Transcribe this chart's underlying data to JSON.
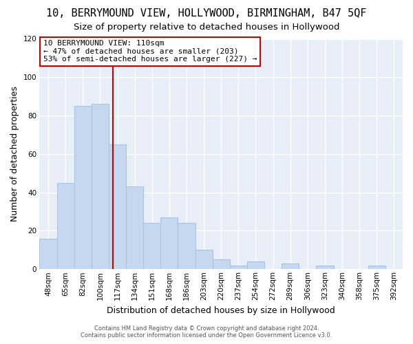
{
  "title": "10, BERRYMOUND VIEW, HOLLYWOOD, BIRMINGHAM, B47 5QF",
  "subtitle": "Size of property relative to detached houses in Hollywood",
  "xlabel": "Distribution of detached houses by size in Hollywood",
  "ylabel": "Number of detached properties",
  "bar_labels": [
    "48sqm",
    "65sqm",
    "82sqm",
    "100sqm",
    "117sqm",
    "134sqm",
    "151sqm",
    "168sqm",
    "186sqm",
    "203sqm",
    "220sqm",
    "237sqm",
    "254sqm",
    "272sqm",
    "289sqm",
    "306sqm",
    "323sqm",
    "340sqm",
    "358sqm",
    "375sqm",
    "392sqm"
  ],
  "bar_values": [
    16,
    45,
    85,
    86,
    65,
    43,
    24,
    27,
    24,
    10,
    5,
    2,
    4,
    0,
    3,
    0,
    2,
    0,
    0,
    2,
    0
  ],
  "bar_color": "#c5d8f0",
  "bar_edge_color": "#a8c4e0",
  "vline_color": "#cc0000",
  "vline_x": 3.75,
  "ylim": [
    0,
    120
  ],
  "yticks": [
    0,
    20,
    40,
    60,
    80,
    100,
    120
  ],
  "annotation_title": "10 BERRYMOUND VIEW: 110sqm",
  "annotation_line1": "← 47% of detached houses are smaller (203)",
  "annotation_line2": "53% of semi-detached houses are larger (227) →",
  "footer_line1": "Contains HM Land Registry data © Crown copyright and database right 2024.",
  "footer_line2": "Contains public sector information licensed under the Open Government Licence v3.0.",
  "background_color": "#ffffff",
  "plot_bg_color": "#e8eef8",
  "grid_color": "#ffffff",
  "title_fontsize": 11,
  "subtitle_fontsize": 9.5,
  "tick_fontsize": 7.5,
  "label_fontsize": 9
}
